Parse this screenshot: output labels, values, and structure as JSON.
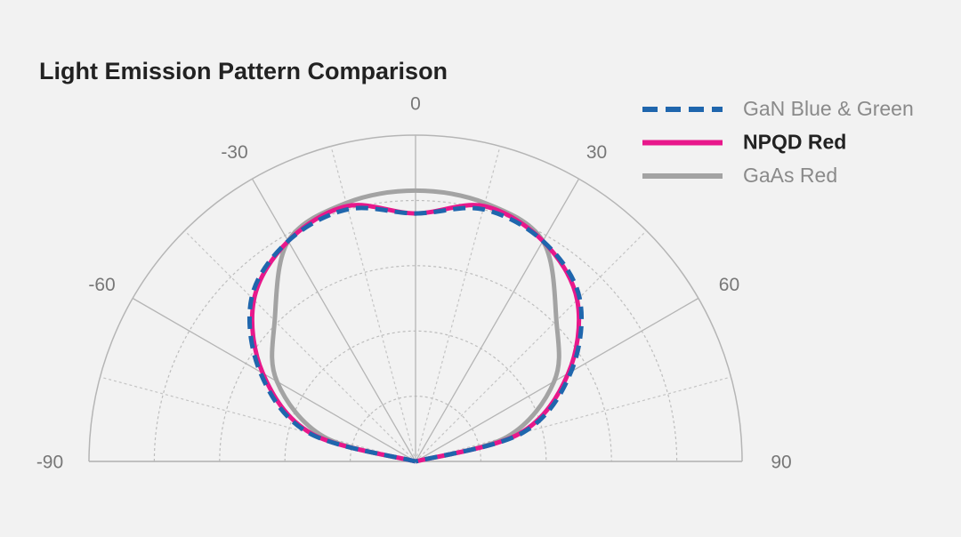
{
  "chart_data": {
    "type": "polar",
    "title": "Light Emission Pattern Comparison",
    "theta": [
      -90,
      -75,
      -60,
      -45,
      -30,
      -15,
      0,
      15,
      30,
      45,
      60,
      75,
      90
    ],
    "thetalim": [
      -90,
      90
    ],
    "thetaticks": [
      -90,
      -60,
      -30,
      0,
      30,
      60,
      90
    ],
    "rlim": [
      0,
      1
    ],
    "rticks": [
      0.2,
      0.4,
      0.6,
      0.8,
      1.0
    ],
    "grid": true,
    "legend": "upper right",
    "series": [
      {
        "name": "GaN Blue & Green",
        "color": "#1f66ad",
        "dashed": true,
        "values": [
          0,
          0.34,
          0.55,
          0.71,
          0.78,
          0.8,
          0.76,
          0.8,
          0.78,
          0.71,
          0.55,
          0.34,
          0
        ]
      },
      {
        "name": "NPQD Red",
        "color": "#e8188b",
        "dashed": false,
        "values": [
          0,
          0.33,
          0.54,
          0.7,
          0.78,
          0.81,
          0.76,
          0.81,
          0.78,
          0.7,
          0.54,
          0.33,
          0
        ]
      },
      {
        "name": "GaAs Red",
        "color": "#a3a3a3",
        "dashed": false,
        "values": [
          0,
          0.29,
          0.49,
          0.61,
          0.78,
          0.82,
          0.83,
          0.82,
          0.78,
          0.61,
          0.49,
          0.29,
          0
        ]
      }
    ]
  }
}
